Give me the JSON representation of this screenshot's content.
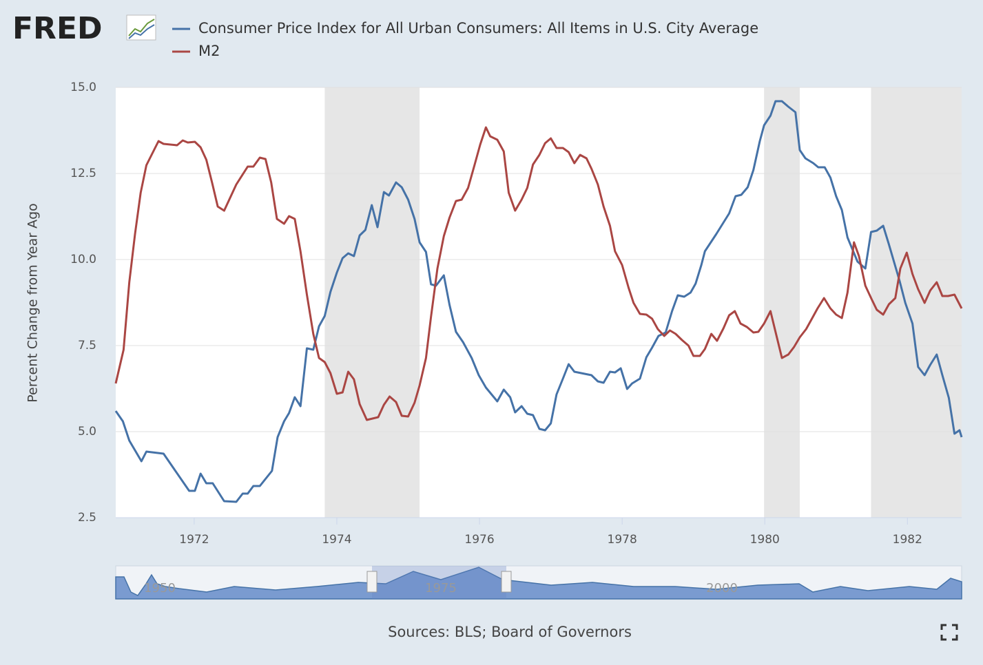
{
  "chart_data": {
    "type": "line",
    "logo": "FRED",
    "ylabel": "Percent Change from Year Ago",
    "source": "Sources: BLS; Board of Governors",
    "xlim": [
      1970.9,
      1982.76
    ],
    "xticks": [
      1972,
      1974,
      1976,
      1978,
      1980,
      1982
    ],
    "ylim": [
      2.5,
      15
    ],
    "yticks": [
      2.5,
      {
        "value": 5,
        "label": "5.0"
      },
      7.5,
      {
        "value": 10,
        "label": "10.0"
      },
      12.5,
      {
        "value": 15,
        "label": "15.0"
      }
    ],
    "grid": true,
    "recessions": [
      [
        1973.83,
        1975.16
      ],
      [
        1979.99,
        1980.49
      ],
      [
        1981.49,
        1982.76
      ]
    ],
    "navigator_labels": [
      "1950",
      "1975",
      "2000"
    ],
    "series": [
      {
        "name": "Consumer Price Index for All Urban Consumers: All Items in U.S. City Average",
        "color": "#4572a7",
        "x": [
          1970.9,
          1971.0,
          1971.09,
          1971.26,
          1971.33,
          1971.57,
          1971.93,
          1972.01,
          1972.09,
          1972.17,
          1972.26,
          1972.42,
          1972.59,
          1972.68,
          1972.75,
          1972.83,
          1972.92,
          1973.09,
          1973.17,
          1973.26,
          1973.33,
          1973.41,
          1973.49,
          1973.58,
          1973.67,
          1973.75,
          1973.83,
          1973.91,
          1974.0,
          1974.08,
          1974.16,
          1974.24,
          1974.32,
          1974.4,
          1974.49,
          1974.57,
          1974.66,
          1974.73,
          1974.83,
          1974.91,
          1975.0,
          1975.09,
          1975.16,
          1975.25,
          1975.32,
          1975.39,
          1975.5,
          1975.58,
          1975.67,
          1975.77,
          1975.89,
          1975.99,
          1976.09,
          1976.25,
          1976.34,
          1976.43,
          1976.5,
          1976.59,
          1976.67,
          1976.75,
          1976.84,
          1976.92,
          1977.0,
          1977.08,
          1977.17,
          1977.25,
          1977.33,
          1977.57,
          1977.66,
          1977.74,
          1977.83,
          1977.9,
          1977.98,
          1978.07,
          1978.14,
          1978.25,
          1978.34,
          1978.42,
          1978.51,
          1978.61,
          1978.7,
          1978.78,
          1978.87,
          1978.96,
          1979.03,
          1979.11,
          1979.16,
          1979.32,
          1979.5,
          1979.59,
          1979.67,
          1979.76,
          1979.84,
          1979.93,
          1979.99,
          1980.08,
          1980.15,
          1980.24,
          1980.33,
          1980.43,
          1980.49,
          1980.57,
          1980.68,
          1980.75,
          1980.84,
          1980.92,
          1981.0,
          1981.08,
          1981.16,
          1981.24,
          1981.3,
          1981.41,
          1981.49,
          1981.57,
          1981.66,
          1981.74,
          1981.89,
          1981.97,
          1982.07,
          1982.15,
          1982.24,
          1982.32,
          1982.41,
          1982.49,
          1982.58,
          1982.66,
          1982.73,
          1982.76
        ],
        "values": [
          5.6,
          5.3,
          4.74,
          4.14,
          4.42,
          4.36,
          3.28,
          3.28,
          3.78,
          3.5,
          3.5,
          2.98,
          2.96,
          3.2,
          3.2,
          3.42,
          3.42,
          3.86,
          4.84,
          5.3,
          5.54,
          6.0,
          5.74,
          7.42,
          7.38,
          8.06,
          8.36,
          9.06,
          9.62,
          10.04,
          10.18,
          10.1,
          10.7,
          10.86,
          11.58,
          10.94,
          11.96,
          11.86,
          12.24,
          12.1,
          11.74,
          11.18,
          10.5,
          10.22,
          9.28,
          9.24,
          9.54,
          8.68,
          7.9,
          7.6,
          7.14,
          6.64,
          6.28,
          5.88,
          6.22,
          6.0,
          5.56,
          5.74,
          5.52,
          5.48,
          5.08,
          5.04,
          5.24,
          6.08,
          6.54,
          6.96,
          6.74,
          6.64,
          6.46,
          6.42,
          6.74,
          6.72,
          6.84,
          6.24,
          6.4,
          6.54,
          7.16,
          7.44,
          7.78,
          7.88,
          8.5,
          8.96,
          8.92,
          9.04,
          9.3,
          9.84,
          10.24,
          10.74,
          11.34,
          11.84,
          11.88,
          12.1,
          12.6,
          13.44,
          13.9,
          14.18,
          14.6,
          14.6,
          14.44,
          14.28,
          13.18,
          12.94,
          12.8,
          12.68,
          12.68,
          12.38,
          11.84,
          11.44,
          10.64,
          10.24,
          9.94,
          9.74,
          10.8,
          10.84,
          10.98,
          10.44,
          9.38,
          8.74,
          8.14,
          6.88,
          6.64,
          6.94,
          7.24,
          6.64,
          5.98,
          4.94,
          5.04,
          4.84
        ]
      },
      {
        "name": "M2",
        "color": "#aa4643",
        "x": [
          1970.9,
          1971.01,
          1971.09,
          1971.17,
          1971.25,
          1971.33,
          1971.5,
          1971.57,
          1971.76,
          1971.84,
          1971.91,
          1972.01,
          1972.09,
          1972.17,
          1972.25,
          1972.33,
          1972.42,
          1972.59,
          1972.75,
          1972.83,
          1972.92,
          1973.0,
          1973.08,
          1973.16,
          1973.26,
          1973.33,
          1973.41,
          1973.49,
          1973.58,
          1973.67,
          1973.75,
          1973.83,
          1973.91,
          1974.0,
          1974.08,
          1974.16,
          1974.24,
          1974.32,
          1974.42,
          1974.58,
          1974.66,
          1974.74,
          1974.83,
          1974.91,
          1975.0,
          1975.09,
          1975.16,
          1975.25,
          1975.32,
          1975.41,
          1975.5,
          1975.58,
          1975.67,
          1975.75,
          1975.84,
          1975.93,
          1976.01,
          1976.09,
          1976.15,
          1976.25,
          1976.34,
          1976.41,
          1976.5,
          1976.59,
          1976.67,
          1976.75,
          1976.84,
          1976.92,
          1977.0,
          1977.08,
          1977.17,
          1977.25,
          1977.33,
          1977.41,
          1977.5,
          1977.57,
          1977.66,
          1977.74,
          1977.83,
          1977.9,
          1978.0,
          1978.09,
          1978.16,
          1978.25,
          1978.34,
          1978.42,
          1978.5,
          1978.59,
          1978.67,
          1978.75,
          1978.84,
          1978.93,
          1979.0,
          1979.09,
          1979.16,
          1979.25,
          1979.33,
          1979.42,
          1979.5,
          1979.58,
          1979.66,
          1979.75,
          1979.84,
          1979.91,
          1979.99,
          1980.08,
          1980.15,
          1980.24,
          1980.33,
          1980.41,
          1980.49,
          1980.58,
          1980.66,
          1980.74,
          1980.83,
          1980.92,
          1981.0,
          1981.08,
          1981.16,
          1981.25,
          1981.32,
          1981.41,
          1981.5,
          1981.57,
          1981.66,
          1981.74,
          1981.83,
          1981.9,
          1981.99,
          1982.07,
          1982.15,
          1982.24,
          1982.32,
          1982.41,
          1982.49,
          1982.57,
          1982.66,
          1982.76
        ],
        "values": [
          6.4,
          7.38,
          9.34,
          10.74,
          11.94,
          12.74,
          13.44,
          13.36,
          13.32,
          13.46,
          13.4,
          13.42,
          13.26,
          12.9,
          12.24,
          11.54,
          11.42,
          12.18,
          12.7,
          12.7,
          12.96,
          12.92,
          12.24,
          11.18,
          11.04,
          11.26,
          11.18,
          10.24,
          8.98,
          7.84,
          7.14,
          7.02,
          6.7,
          6.1,
          6.14,
          6.74,
          6.52,
          5.8,
          5.34,
          5.42,
          5.78,
          6.02,
          5.86,
          5.46,
          5.44,
          5.84,
          6.34,
          7.14,
          8.34,
          9.74,
          10.68,
          11.22,
          11.7,
          11.74,
          12.08,
          12.74,
          13.34,
          13.84,
          13.58,
          13.48,
          13.14,
          11.94,
          11.42,
          11.74,
          12.08,
          12.76,
          13.04,
          13.38,
          13.52,
          13.24,
          13.24,
          13.12,
          12.8,
          13.04,
          12.94,
          12.64,
          12.18,
          11.54,
          10.98,
          10.24,
          9.84,
          9.18,
          8.74,
          8.42,
          8.4,
          8.28,
          7.98,
          7.78,
          7.94,
          7.84,
          7.66,
          7.5,
          7.2,
          7.2,
          7.4,
          7.84,
          7.64,
          8.0,
          8.38,
          8.5,
          8.14,
          8.04,
          7.88,
          7.9,
          8.14,
          8.5,
          7.9,
          7.14,
          7.24,
          7.46,
          7.74,
          7.98,
          8.28,
          8.58,
          8.88,
          8.58,
          8.4,
          8.3,
          9.04,
          10.5,
          10.1,
          9.24,
          8.84,
          8.54,
          8.4,
          8.7,
          8.88,
          9.74,
          10.2,
          9.58,
          9.14,
          8.74,
          9.1,
          9.34,
          8.94,
          8.94,
          8.98,
          8.58
        ]
      }
    ]
  }
}
